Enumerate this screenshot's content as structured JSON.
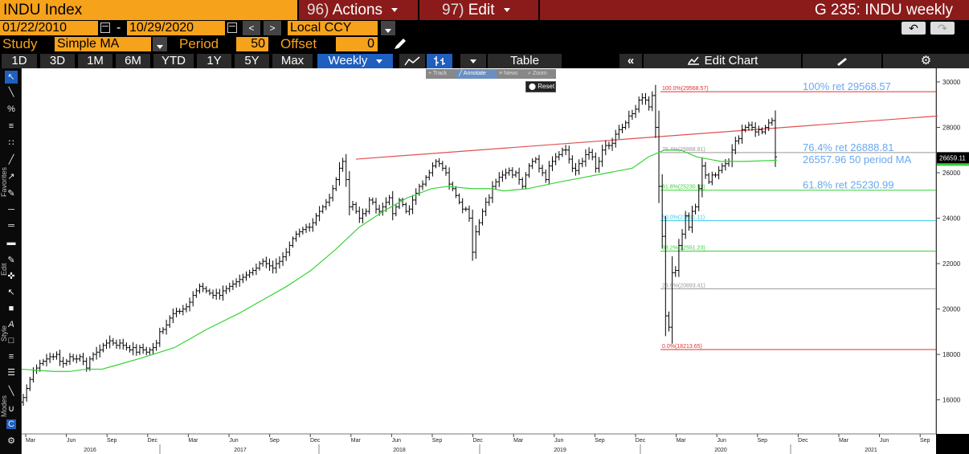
{
  "header": {
    "ticker": "INDU Index",
    "actions_num": "96)",
    "actions_label": "Actions",
    "edit_num": "97)",
    "edit_label": "Edit",
    "title": "G 235: INDU weekly"
  },
  "range": {
    "start": "01/22/2010",
    "end": "10/29/2020",
    "dash": "-",
    "prev": "<",
    "next": ">",
    "currency": "Local CCY"
  },
  "study": {
    "study_label": "Study",
    "study_value": "Simple MA",
    "period_label": "Period",
    "period_value": "50",
    "offset_label": "Offset",
    "offset_value": "0"
  },
  "tabs": {
    "items": [
      "1D",
      "3D",
      "1M",
      "6M",
      "YTD",
      "1Y",
      "5Y",
      "Max"
    ],
    "frequency": "Weekly",
    "table": "Table",
    "collapse": "«",
    "edit_chart": "Edit Chart"
  },
  "toolbar": {
    "favorites": "Favorites",
    "edit": "Edit",
    "style": "Style",
    "modes": "Modes"
  },
  "annotate_bar": {
    "track": "Track",
    "annotate": "Annotate",
    "news": "News",
    "zoom": "Zoom",
    "reset": "Reset"
  },
  "colors": {
    "ma": "#35d335",
    "fib_top": "#e03030",
    "fib_mid": "#35d335",
    "fib_50": "#38c8e8",
    "fib_23": "#999999",
    "trendline": "#e05050",
    "callout": "#6aa8f0",
    "bars": "#ffffff"
  },
  "chart_data": {
    "type": "ohlc",
    "title": "INDU weekly",
    "x_axis": {
      "months": [
        "Mar",
        "Jun",
        "Sep",
        "Dec",
        "Mar",
        "Jun",
        "Sep",
        "Dec",
        "Mar",
        "Jun",
        "Sep",
        "Dec",
        "Mar",
        "Jun",
        "Sep",
        "Dec",
        "Mar",
        "Jun",
        "Sep",
        "Dec",
        "Mar",
        "Jun",
        "Sep"
      ],
      "years": [
        "2016",
        "2017",
        "2018",
        "2019",
        "2020",
        "2021"
      ]
    },
    "ylim": [
      14500,
      30600
    ],
    "y_ticks": [
      16000,
      18000,
      20000,
      22000,
      24000,
      26000,
      28000,
      30000
    ],
    "last_price_label": "26659.11",
    "series": [
      {
        "name": "INDU weekly",
        "kind": "ohlc_close_path",
        "closes": [
          16100,
          16500,
          16900,
          17300,
          17400,
          17600,
          17700,
          17800,
          17900,
          17900,
          18000,
          17700,
          17600,
          17700,
          17900,
          17800,
          17800,
          17900,
          17700,
          17400,
          17800,
          18000,
          18100,
          18200,
          18400,
          18500,
          18600,
          18500,
          18400,
          18500,
          18400,
          18300,
          18200,
          18300,
          18100,
          18300,
          18200,
          18100,
          18200,
          18300,
          18500,
          19000,
          19100,
          19300,
          19600,
          19800,
          19900,
          19900,
          20000,
          20100,
          20300,
          20600,
          20800,
          21000,
          20900,
          20800,
          20700,
          20600,
          20700,
          20600,
          20800,
          20900,
          21000,
          21100,
          21200,
          21300,
          21400,
          21500,
          21600,
          21700,
          21800,
          22000,
          22100,
          22000,
          21900,
          21800,
          22000,
          22100,
          22300,
          22500,
          22800,
          23100,
          23300,
          23400,
          23500,
          23600,
          23600,
          23800,
          24100,
          24300,
          24500,
          24700,
          24900,
          25300,
          25700,
          26200,
          26500,
          25700,
          24500,
          24600,
          24300,
          24000,
          24200,
          24300,
          24800,
          24700,
          24400,
          24300,
          24500,
          24700,
          24900,
          24200,
          24500,
          24800,
          24600,
          24300,
          24400,
          24800,
          25100,
          25400,
          25500,
          25800,
          26000,
          26300,
          26500,
          26400,
          26200,
          26000,
          25500,
          25300,
          25000,
          24700,
          24400,
          24400,
          24000,
          22500,
          23400,
          23800,
          24300,
          24700,
          24900,
          25400,
          25600,
          25800,
          25900,
          26000,
          26100,
          25900,
          26000,
          25700,
          25400,
          25900,
          26300,
          26500,
          26600,
          26200,
          26000,
          25700,
          26300,
          26500,
          26700,
          26800,
          27000,
          27000,
          26600,
          26200,
          26100,
          26400,
          26500,
          26800,
          26900,
          26700,
          26200,
          26500,
          27000,
          27200,
          27200,
          27300,
          27700,
          27900,
          28000,
          28200,
          28500,
          28600,
          28800,
          29200,
          29300,
          29200,
          28900,
          29400,
          28000,
          25400,
          23200,
          19700,
          19200,
          21600,
          21700,
          22800,
          23300,
          24100,
          23600,
          24300,
          24500,
          25300,
          26300,
          25900,
          25600,
          25900,
          25900,
          26100,
          26300,
          26400,
          26500,
          27000,
          27400,
          27500,
          27900,
          28000,
          28100,
          28000,
          27800,
          27900,
          27800,
          28000,
          28200,
          28300,
          26700
        ]
      },
      {
        "name": "50 period MA",
        "kind": "ma",
        "points": [
          [
            0,
            17350
          ],
          [
            20,
            17300
          ],
          [
            40,
            17250
          ],
          [
            60,
            17250
          ],
          [
            80,
            17350
          ],
          [
            100,
            17350
          ],
          [
            110,
            17450
          ],
          [
            150,
            17850
          ],
          [
            190,
            18300
          ],
          [
            230,
            19100
          ],
          [
            270,
            19800
          ],
          [
            300,
            20400
          ],
          [
            330,
            21000
          ],
          [
            360,
            21700
          ],
          [
            390,
            22600
          ],
          [
            420,
            23600
          ],
          [
            450,
            24300
          ],
          [
            480,
            24900
          ],
          [
            510,
            25300
          ],
          [
            530,
            25400
          ],
          [
            560,
            25300
          ],
          [
            585,
            25300
          ],
          [
            600,
            25200
          ],
          [
            630,
            25300
          ],
          [
            650,
            25450
          ],
          [
            670,
            25600
          ],
          [
            700,
            25800
          ],
          [
            730,
            26000
          ],
          [
            760,
            26200
          ],
          [
            780,
            26700
          ],
          [
            800,
            27000
          ],
          [
            820,
            27000
          ],
          [
            840,
            26700
          ],
          [
            870,
            26500
          ],
          [
            900,
            26500
          ],
          [
            940,
            26550
          ]
        ]
      }
    ],
    "levels": [
      {
        "label": "100.0%(29568.57)",
        "value": 29568.57,
        "color": "fib_top",
        "callout": "100% ret 29568.57"
      },
      {
        "label": "76.4%(26888.81)",
        "value": 26888.81,
        "color": "fib_23",
        "callout": "76.4% ret 26888.81"
      },
      {
        "label": "61.8%(25230.99)",
        "value": 25230.99,
        "color": "fib_mid",
        "callout": "61.8% ret 25230.99"
      },
      {
        "label": "50.0%(23891.11)",
        "value": 23891.11,
        "color": "fib_50",
        "callout": ""
      },
      {
        "label": "38.2%(22551.23)",
        "value": 22551.23,
        "color": "fib_mid",
        "callout": ""
      },
      {
        "label": "23.6%(20893.41)",
        "value": 20893.41,
        "color": "fib_23",
        "callout": ""
      },
      {
        "label": "0.0%(18213.65)",
        "value": 18213.65,
        "color": "fib_top",
        "callout": ""
      }
    ],
    "ma_callout": "26557.96 50 period MA",
    "trendline": {
      "from": [
        416,
        26600
      ],
      "to": [
        1140,
        28500
      ]
    }
  }
}
